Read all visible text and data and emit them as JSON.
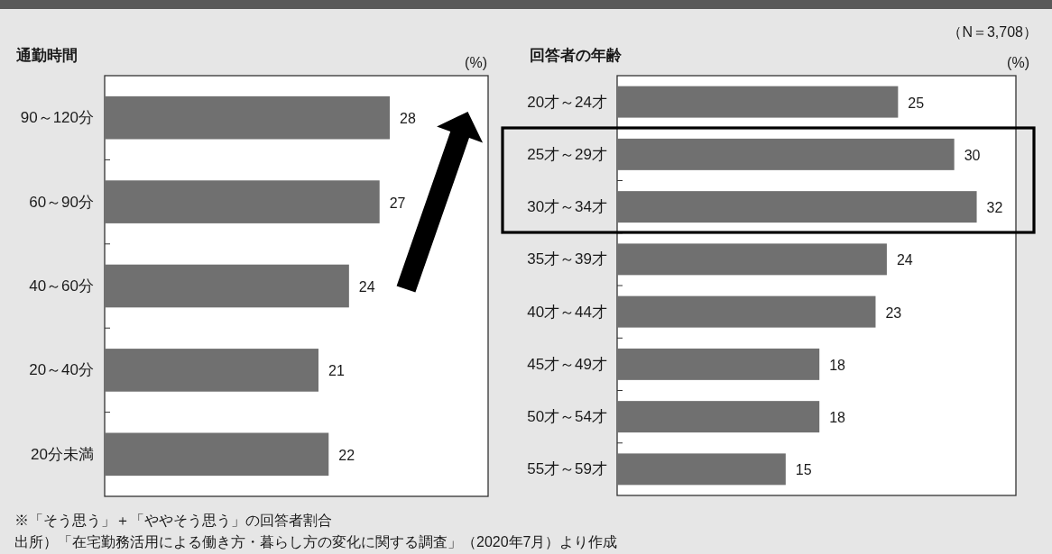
{
  "chart_data": [
    {
      "type": "bar",
      "orientation": "horizontal",
      "title": "通勤時間",
      "xlabel": "(%)",
      "categories": [
        "90～120分",
        "60～90分",
        "40～60分",
        "20～40分",
        "20分未満"
      ],
      "values": [
        28,
        27,
        24,
        21,
        22
      ],
      "color": "#707070",
      "data_labels": true,
      "annotations": [
        "※「そう思う」＋「ややそう思う」の回答者割合",
        "出所）「在宅勤務活用による働き方・暮らし方の変化に関する調査」（2020年7月）より作成"
      ]
    },
    {
      "type": "bar",
      "orientation": "horizontal",
      "title": "回答者の年齢",
      "xlabel": "(%)",
      "categories": [
        "20才～24才",
        "25才～29才",
        "30才～34才",
        "35才～39才",
        "40才～44才",
        "45才～49才",
        "50才～54才",
        "55才～59才"
      ],
      "values": [
        25,
        30,
        32,
        24,
        23,
        18,
        18,
        15
      ],
      "color": "#707070",
      "data_labels": true,
      "annotations": [
        "（N＝3,708）"
      ]
    }
  ]
}
